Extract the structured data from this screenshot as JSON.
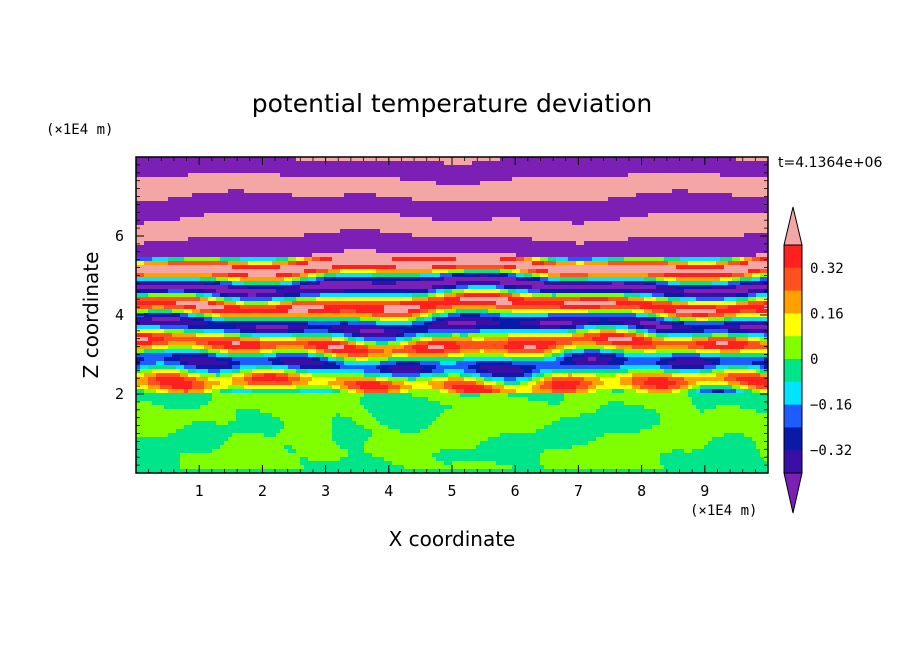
{
  "chart_data": {
    "type": "heatmap",
    "title": "potential temperature deviation",
    "xlabel": "X coordinate",
    "ylabel": "Z coordinate",
    "x_unit": "(×1E4 m)",
    "y_unit": "(×1E4 m)",
    "time_label": "t=4.1364e+06",
    "xlim": [
      0,
      10
    ],
    "ylim": [
      0,
      8
    ],
    "x_ticks": [
      "1",
      "2",
      "3",
      "4",
      "5",
      "6",
      "7",
      "8",
      "9"
    ],
    "y_ticks": [
      "2",
      "4",
      "6"
    ],
    "colorbar": {
      "min": -0.4,
      "max": 0.4,
      "step": 0.08,
      "tick_labels": [
        "0.32",
        "0.16",
        "0",
        "−0.16",
        "−0.32"
      ],
      "colors": [
        "#7b1fb5",
        "#3a0fa5",
        "#0a1aa8",
        "#1f5cff",
        "#00e5ff",
        "#00e58a",
        "#80ff00",
        "#ffff00",
        "#ffa000",
        "#ff5020",
        "#ff2020",
        "#f4a6a4"
      ]
    },
    "regions": {
      "boundary_layer_top_z": 2.0,
      "boundary_layer_colors": [
        "#80ff00",
        "#00e58a"
      ],
      "upper_layer_colors": [
        "#7b1fb5",
        "#f4a6a4"
      ]
    }
  }
}
